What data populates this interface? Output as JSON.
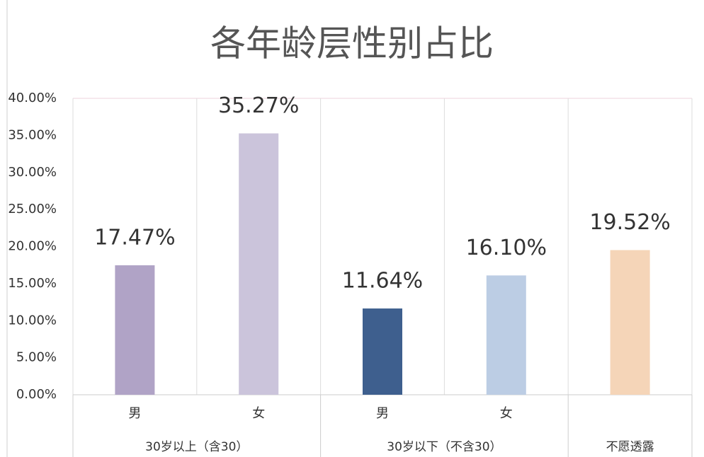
{
  "chart_data": {
    "type": "bar",
    "title": "各年龄层性别占比",
    "categories": [
      "男",
      "女",
      "男",
      "女",
      null
    ],
    "groups": [
      {
        "name": "30岁以上（含30）",
        "size": 2
      },
      {
        "name": "30岁以下（不含30）",
        "size": 2
      },
      {
        "name": "不愿透露",
        "size": 1
      }
    ],
    "values": [
      17.47,
      35.27,
      11.64,
      16.1,
      19.52
    ],
    "value_labels": [
      "17.47%",
      "35.27%",
      "11.64%",
      "16.10%",
      "19.52%"
    ],
    "colors": [
      "#b0a3c6",
      "#cbc4db",
      "#3e5f8e",
      "#bccde4",
      "#f5d5b8"
    ],
    "ylim": [
      0,
      40
    ],
    "yticks": [
      {
        "value": 0,
        "label": "0.00%"
      },
      {
        "value": 5,
        "label": "5.00%"
      },
      {
        "value": 10,
        "label": "10.00%"
      },
      {
        "value": 15,
        "label": "15.00%"
      },
      {
        "value": 20,
        "label": "20.00%"
      },
      {
        "value": 25,
        "label": "25.00%"
      },
      {
        "value": 30,
        "label": "30.00%"
      },
      {
        "value": 35,
        "label": "35.00%"
      },
      {
        "value": 40,
        "label": "40.00%"
      }
    ]
  }
}
